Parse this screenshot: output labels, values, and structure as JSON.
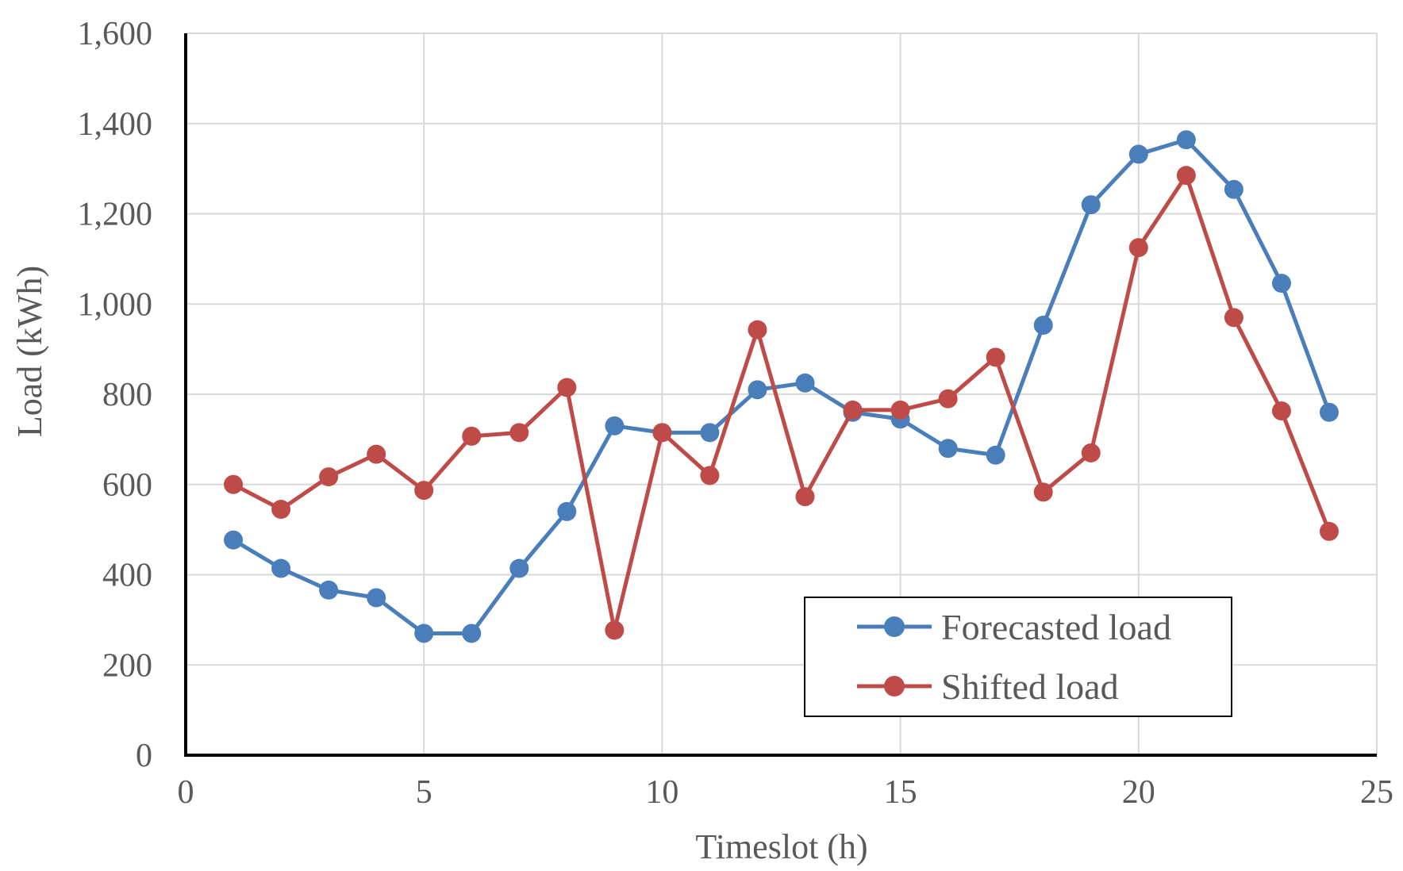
{
  "chart_data": {
    "type": "line",
    "title": "",
    "xlabel": "Timeslot (h)",
    "ylabel": "Load (kWh)",
    "xlim": [
      0,
      25
    ],
    "ylim": [
      0,
      1600
    ],
    "x_ticks": [
      0,
      5,
      10,
      15,
      20,
      25
    ],
    "x_tick_labels": [
      "0",
      "5",
      "10",
      "15",
      "20",
      "25"
    ],
    "y_ticks": [
      0,
      200,
      400,
      600,
      800,
      1000,
      1200,
      1400,
      1600
    ],
    "y_tick_labels": [
      "0",
      "200",
      "400",
      "600",
      "800",
      "1,000",
      "1,200",
      "1,400",
      "1,600"
    ],
    "grid": true,
    "legend_position": "bottom-right",
    "x": [
      1,
      2,
      3,
      4,
      5,
      6,
      7,
      8,
      9,
      10,
      11,
      12,
      13,
      14,
      15,
      16,
      17,
      18,
      19,
      20,
      21,
      22,
      23,
      24
    ],
    "series": [
      {
        "name": "Forecasted load",
        "color": "#4a7ebb",
        "values": [
          477,
          414,
          366,
          349,
          270,
          270,
          414,
          540,
          730,
          715,
          715,
          810,
          825,
          760,
          745,
          680,
          665,
          953,
          1220,
          1332,
          1364,
          1254,
          1046,
          760
        ]
      },
      {
        "name": "Shifted load",
        "color": "#be4b48",
        "values": [
          600,
          545,
          617,
          667,
          587,
          707,
          715,
          815,
          277,
          715,
          620,
          943,
          573,
          765,
          765,
          790,
          882,
          583,
          670,
          1125,
          1285,
          970,
          763,
          496
        ]
      }
    ]
  }
}
